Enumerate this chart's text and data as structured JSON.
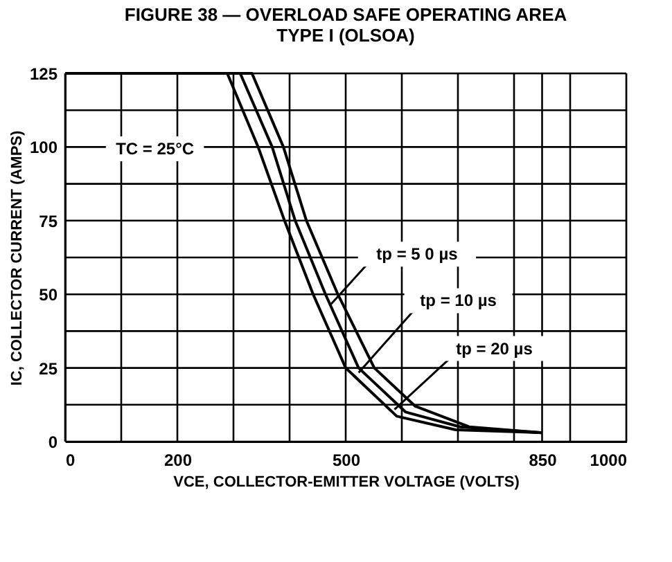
{
  "chart_data": {
    "type": "line",
    "title": [
      "FIGURE 38 — OVERLOAD SAFE OPERATING AREA",
      "TYPE I (OLSOA)"
    ],
    "xlabel": "VCE, COLLECTOR-EMITTER VOLTAGE (VOLTS)",
    "ylabel": "IC, COLLECTOR CURRENT (AMPS)",
    "series": [
      {
        "color": "#000000",
        "x": [
          0,
          289,
          344,
          391,
          442,
          500,
          591,
          696,
          850
        ],
        "values": [
          125,
          125,
          100,
          75,
          50,
          25,
          8.6,
          4,
          3
        ]
      },
      {
        "color": "#000000",
        "x": [
          0,
          312,
          369,
          410,
          464,
          523,
          607,
          704,
          850
        ],
        "values": [
          125,
          125,
          100,
          75,
          50,
          25,
          10,
          5,
          3
        ]
      },
      {
        "color": "#000000",
        "x": [
          0,
          333,
          389,
          430,
          486,
          551,
          624,
          720,
          850
        ],
        "values": [
          125,
          125,
          100,
          75,
          50,
          25,
          12,
          5,
          3
        ]
      }
    ],
    "xlim": [
      0,
      1000
    ],
    "xticks": [
      0,
      {
        "value": 100,
        "label": null
      },
      200,
      {
        "value": 300,
        "label": null
      },
      {
        "value": 400,
        "label": null
      },
      500,
      {
        "value": 600,
        "label": null
      },
      {
        "value": 700,
        "label": null
      },
      {
        "value": 800,
        "label": null
      },
      850,
      {
        "value": 900,
        "label": null
      },
      1000
    ],
    "ylim": [
      0,
      125
    ],
    "yticks": [
      0,
      {
        "value": 12.5,
        "label": null
      },
      25,
      {
        "value": 37.5,
        "label": null
      },
      50,
      {
        "value": 62.5,
        "label": null
      },
      75,
      {
        "value": 87.5,
        "label": null
      },
      100,
      {
        "value": 112.5,
        "label": null
      },
      125
    ],
    "grid": true,
    "line_style": "solid",
    "marker": "none",
    "legend": false,
    "annotations": [
      "TC = 25°C",
      {
        "text": "tp = 5 0 µs",
        "x": 474,
        "y": 46.7
      },
      {
        "text": "tp = 10 µs",
        "x": 523,
        "y": 23.4
      },
      {
        "text": "tp = 20 µs",
        "x": 587,
        "y": 10.9
      }
    ]
  }
}
